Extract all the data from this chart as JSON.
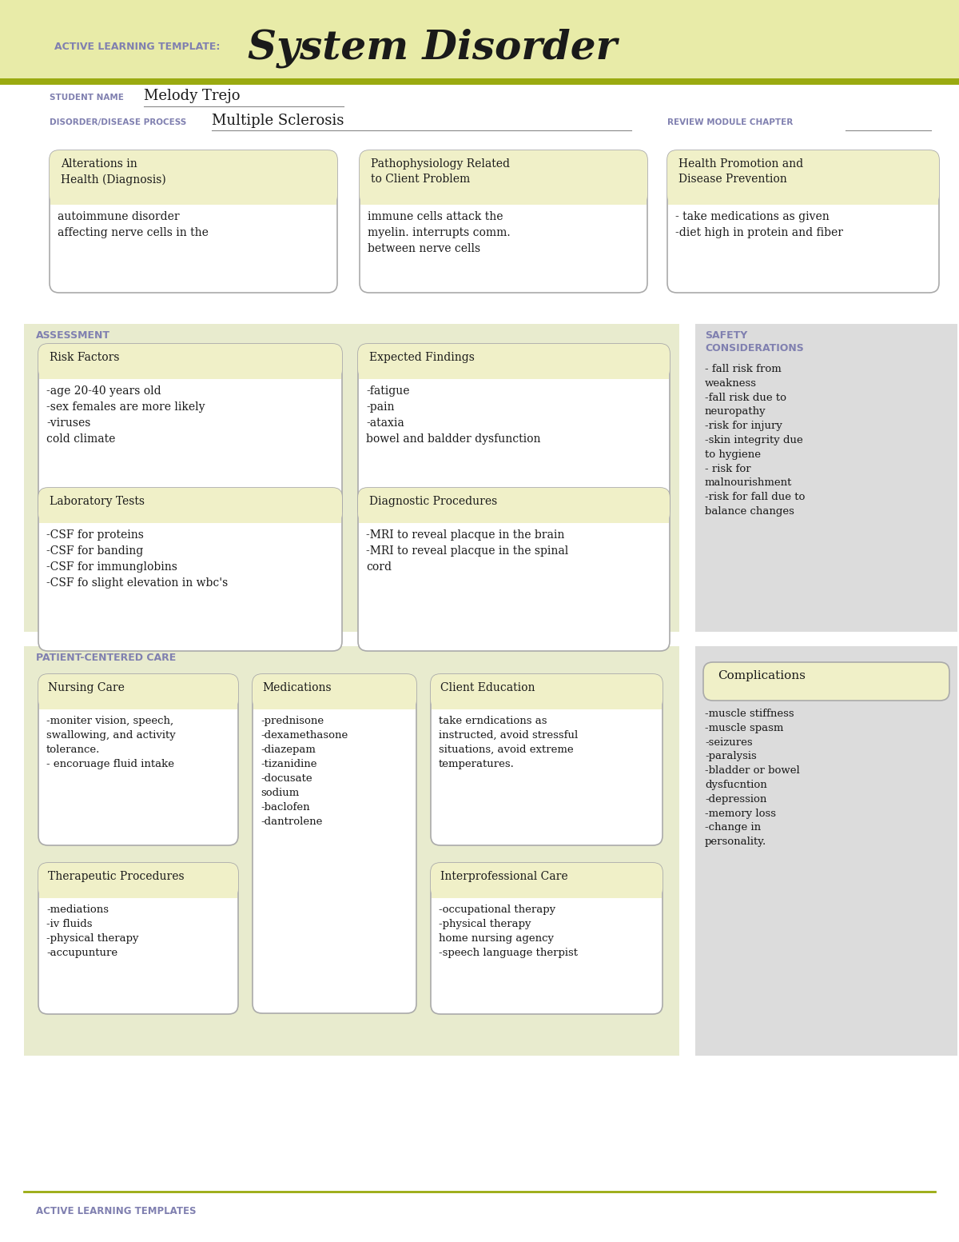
{
  "title": "System Disorder",
  "template_label": "ACTIVE LEARNING TEMPLATE:",
  "bg_header": "#e8eba8",
  "bg_white": "#ffffff",
  "bg_light_yellow": "#f0f0c8",
  "bg_assessment": "#e8ebce",
  "bg_safety": "#dcdcdc",
  "bg_patient": "#e8ebce",
  "accent_color": "#8080b0",
  "olive_line": "#9aaa10",
  "box_border": "#aaaaaa",
  "student_name": "Melody Trejo",
  "disorder": "Multiple Sclerosis",
  "box1_title": "Alterations in\nHealth (Diagnosis)",
  "box1_content": "autoimmune disorder\naffecting nerve cells in the",
  "box2_title": "Pathophysiology Related\nto Client Problem",
  "box2_content": "immune cells attack the\nmyelin. interrupts comm.\nbetween nerve cells",
  "box3_title": "Health Promotion and\nDisease Prevention",
  "box3_content": "- take medications as given\n-diet high in protein and fiber",
  "section_assessment": "ASSESSMENT",
  "section_safety": "SAFETY\nCONSIDERATIONS",
  "risk_title": "Risk Factors",
  "risk_content": "-age 20-40 years old\n-sex females are more likely\n-viruses\ncold climate",
  "expected_title": "Expected Findings",
  "expected_content": "-fatigue\n-pain\n-ataxia\nbowel and baldder dysfunction",
  "safety_content": "- fall risk from\nweakness\n-fall risk due to\nneuropathy\n-risk for injury\n-skin integrity due\nto hygiene\n- risk for\nmalnourishment\n-risk for fall due to\nbalance changes",
  "lab_title": "Laboratory Tests",
  "lab_content": "-CSF for proteins\n-CSF for banding\n-CSF for immunglobins\n-CSF fo slight elevation in wbc's",
  "diag_title": "Diagnostic Procedures",
  "diag_content": "-MRI to reveal placque in the brain\n-MRI to reveal placque in the spinal\ncord",
  "section_patient": "PATIENT-CENTERED CARE",
  "nursing_title": "Nursing Care",
  "nursing_content": "-moniter vision, speech,\nswallowing, and activity\ntolerance.\n- encoruage fluid intake",
  "med_title": "Medications",
  "med_content": "-prednisone\n-dexamethasone\n-diazepam\n-tizanidine\n-docusate\nsodium\n-baclofen\n-dantrolene",
  "edu_title": "Client Education",
  "edu_content": "take erndications as\ninstructed, avoid stressful\nsituations, avoid extreme\ntemperatures.",
  "therapy_title": "Therapeutic Procedures",
  "therapy_content": "-mediations\n-iv fluids\n-physical therapy\n-accupunture",
  "interprof_title": "Interprofessional Care",
  "interprof_content": "-occupational therapy\n-physical therapy\nhome nursing agency\n-speech language therpist",
  "complications_title": "Complications",
  "complications_content": "-muscle stiffness\n-muscle spasm\n-seizures\n-paralysis\n-bladder or bowel\ndysfucntion\n-depression\n-memory loss\n-change in\npersonality.",
  "footer": "ACTIVE LEARNING TEMPLATES"
}
